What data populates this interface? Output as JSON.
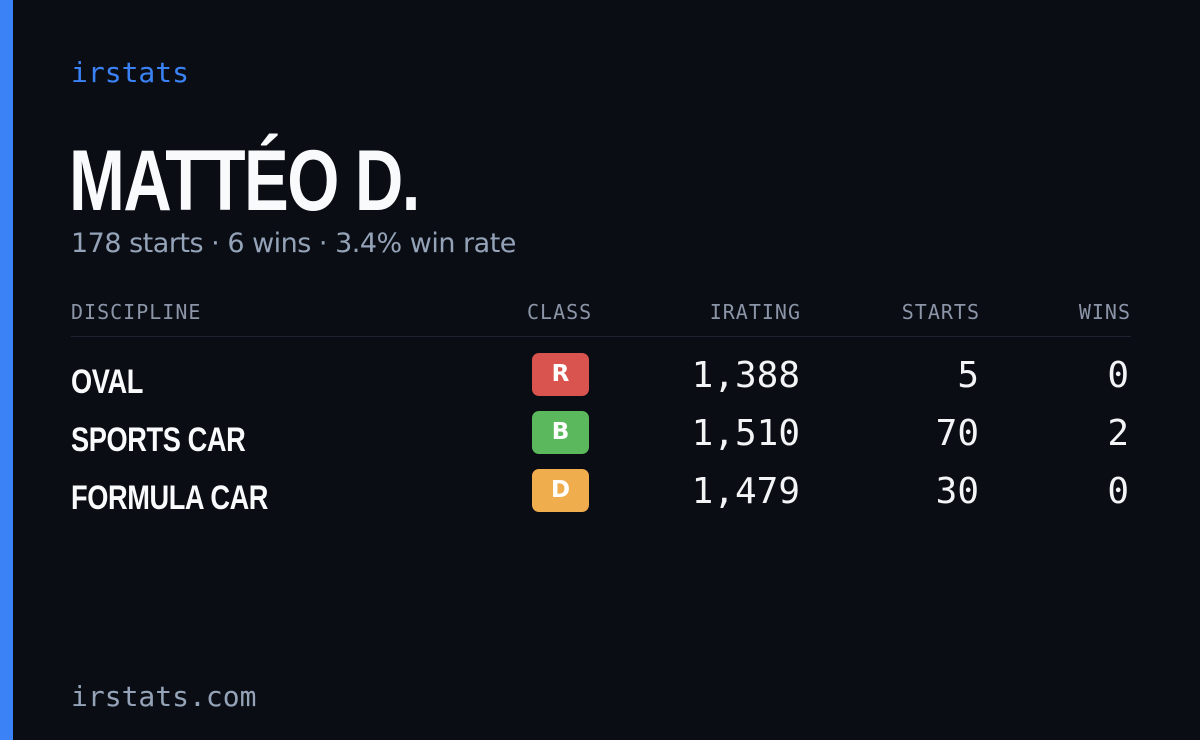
{
  "brand": "irstats",
  "driver": {
    "name": "MATTÉO D.",
    "summary": "178 starts · 6 wins · 3.4% win rate"
  },
  "table": {
    "headers": {
      "discipline": "DISCIPLINE",
      "class": "CLASS",
      "irating": "IRATING",
      "starts": "STARTS",
      "wins": "WINS"
    },
    "rows": [
      {
        "discipline": "OVAL",
        "class": "R",
        "class_color": "#d9534f",
        "irating": "1,388",
        "starts": "5",
        "wins": "0"
      },
      {
        "discipline": "SPORTS CAR",
        "class": "B",
        "class_color": "#5cb85c",
        "irating": "1,510",
        "starts": "70",
        "wins": "2"
      },
      {
        "discipline": "FORMULA CAR",
        "class": "D",
        "class_color": "#f0ad4e",
        "irating": "1,479",
        "starts": "30",
        "wins": "0"
      }
    ]
  },
  "footer": "irstats.com",
  "colors": {
    "background": "#0a0d14",
    "accent": "#3b82f6",
    "muted": "#94a3b8"
  }
}
